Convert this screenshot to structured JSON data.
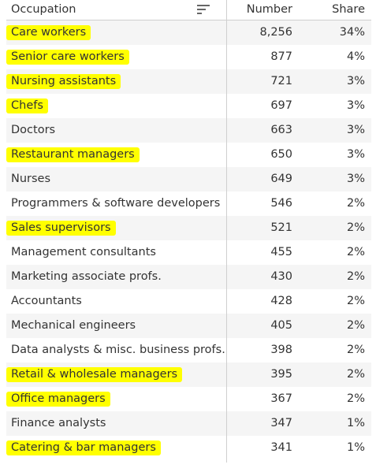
{
  "header": {
    "occupation": "Occupation",
    "number": "Number",
    "share": "Share",
    "sort_icon": "sort-icon"
  },
  "highlight_color": "#ffff00",
  "rows": [
    {
      "occupation": "Care workers",
      "number": "8,256",
      "share": "34%",
      "highlighted": true
    },
    {
      "occupation": "Senior care workers",
      "number": "877",
      "share": "4%",
      "highlighted": true
    },
    {
      "occupation": "Nursing assistants",
      "number": "721",
      "share": "3%",
      "highlighted": true
    },
    {
      "occupation": "Chefs",
      "number": "697",
      "share": "3%",
      "highlighted": true
    },
    {
      "occupation": "Doctors",
      "number": "663",
      "share": "3%",
      "highlighted": false
    },
    {
      "occupation": "Restaurant managers",
      "number": "650",
      "share": "3%",
      "highlighted": true
    },
    {
      "occupation": "Nurses",
      "number": "649",
      "share": "3%",
      "highlighted": false
    },
    {
      "occupation": "Programmers & software developers",
      "number": "546",
      "share": "2%",
      "highlighted": false
    },
    {
      "occupation": "Sales supervisors",
      "number": "521",
      "share": "2%",
      "highlighted": true
    },
    {
      "occupation": "Management consultants",
      "number": "455",
      "share": "2%",
      "highlighted": false
    },
    {
      "occupation": "Marketing associate profs.",
      "number": "430",
      "share": "2%",
      "highlighted": false
    },
    {
      "occupation": "Accountants",
      "number": "428",
      "share": "2%",
      "highlighted": false
    },
    {
      "occupation": "Mechanical engineers",
      "number": "405",
      "share": "2%",
      "highlighted": false
    },
    {
      "occupation": "Data analysts & misc. business profs.",
      "number": "398",
      "share": "2%",
      "highlighted": false
    },
    {
      "occupation": "Retail & wholesale managers",
      "number": "395",
      "share": "2%",
      "highlighted": true
    },
    {
      "occupation": "Office managers",
      "number": "367",
      "share": "2%",
      "highlighted": true
    },
    {
      "occupation": "Finance analysts",
      "number": "347",
      "share": "1%",
      "highlighted": false
    },
    {
      "occupation": "Catering & bar managers",
      "number": "341",
      "share": "1%",
      "highlighted": true
    }
  ]
}
